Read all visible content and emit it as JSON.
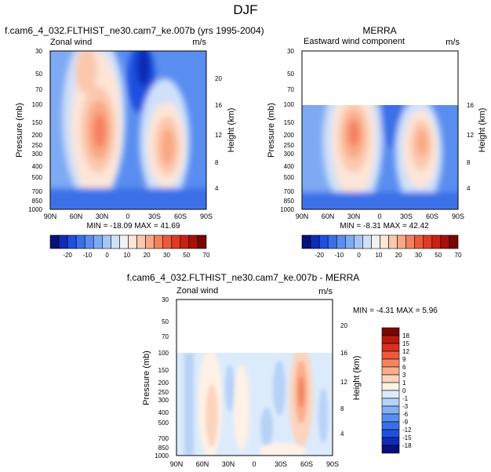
{
  "page_title": "DJF",
  "palettes": {
    "full": [
      "#08107a",
      "#0f2cb8",
      "#1f4fe0",
      "#3a6fe8",
      "#5a8df0",
      "#7eaaf4",
      "#a6c6f7",
      "#cfe0fa",
      "#f2f2f2",
      "#fde5d8",
      "#fbc8ad",
      "#f9a784",
      "#f4805e",
      "#ec5a3c",
      "#de3a24",
      "#c82112",
      "#a8110a",
      "#7a0604"
    ],
    "diff": [
      "#08107a",
      "#0f2cb8",
      "#1f4fe0",
      "#3a6fe8",
      "#5a8df0",
      "#85b0f5",
      "#b7d2f8",
      "#dcebfb",
      "#fff1e6",
      "#fcd4bd",
      "#f9ae8c",
      "#f4845f",
      "#ec5a3c",
      "#d8311e",
      "#b91a0e",
      "#7a0604"
    ]
  },
  "chart_data": [
    {
      "type": "heatmap",
      "id": "model",
      "title": "f.cam6_4_032.FLTHIST_ne30.cam7_ke.007b (yrs 1995-2004)",
      "left_label": "Zonal wind",
      "right_label": "m/s",
      "ylabel": "Pressure (mb)",
      "ylabel_right": "Height (km)",
      "x_ticks": [
        "90N",
        "60N",
        "30N",
        "0",
        "30S",
        "60S",
        "90S"
      ],
      "y_ticks": [
        "30",
        "50",
        "70",
        "100",
        "150",
        "200",
        "250",
        "300",
        "400",
        "500",
        "700",
        "850",
        "1000"
      ],
      "height_ticks": [
        "20",
        "16",
        "12",
        "8",
        "4"
      ],
      "minmax": "MIN = -18.09   MAX =  41.69",
      "data_top_mb": 30,
      "min": -18.09,
      "max": 41.69,
      "colorbar": {
        "orientation": "horizontal",
        "labels": [
          "-20",
          "-10",
          "0",
          "10",
          "20",
          "30",
          "50",
          "70"
        ]
      }
    },
    {
      "type": "heatmap",
      "id": "obs",
      "title": "MERRA",
      "left_label": "Eastward wind component",
      "right_label": "m/s",
      "ylabel": "Pressure (mb)",
      "ylabel_right": "Height (km)",
      "x_ticks": [
        "90N",
        "60N",
        "30N",
        "0",
        "30S",
        "60S",
        "90S"
      ],
      "y_ticks": [
        "30",
        "50",
        "70",
        "100",
        "150",
        "200",
        "250",
        "300",
        "400",
        "500",
        "700",
        "850",
        "1000"
      ],
      "height_ticks": [
        "16",
        "12",
        "8",
        "4"
      ],
      "minmax": "MIN = -8.31   MAX =  42.42",
      "data_top_mb": 100,
      "min": -8.31,
      "max": 42.42,
      "colorbar": {
        "orientation": "horizontal",
        "labels": [
          "-20",
          "-10",
          "0",
          "10",
          "20",
          "30",
          "50",
          "70"
        ]
      }
    },
    {
      "type": "heatmap",
      "id": "diff",
      "title": "f.cam6_4_032.FLTHIST_ne30.cam7_ke.007b - MERRA",
      "left_label": "Zonal wind",
      "right_label": "m/s",
      "ylabel": "Pressure (mb)",
      "ylabel_right": "Height (km)",
      "x_ticks": [
        "90N",
        "60N",
        "30N",
        "0",
        "30S",
        "60S",
        "90S"
      ],
      "y_ticks": [
        "30",
        "50",
        "70",
        "100",
        "150",
        "200",
        "250",
        "300",
        "400",
        "500",
        "700",
        "850",
        "1000"
      ],
      "height_ticks": [
        "20",
        "16",
        "12",
        "8",
        "4"
      ],
      "minmax": "MIN = -4.31   MAX =  5.96",
      "data_top_mb": 100,
      "min": -4.31,
      "max": 5.96,
      "colorbar": {
        "orientation": "vertical",
        "labels": [
          "18",
          "15",
          "12",
          "9",
          "6",
          "3",
          "1",
          "0",
          "-1",
          "-3",
          "-6",
          "-9",
          "-12",
          "-15",
          "-18"
        ]
      }
    }
  ]
}
